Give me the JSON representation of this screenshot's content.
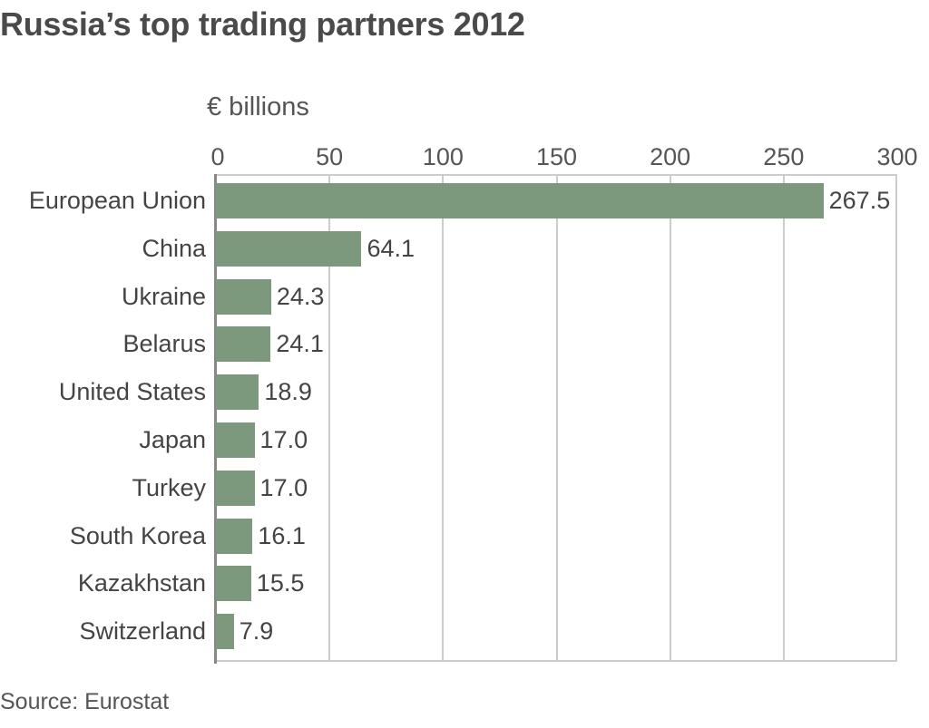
{
  "chart_data": {
    "type": "bar",
    "orientation": "horizontal",
    "title": "Russia’s top trading partners 2012",
    "unit_label": "€ billions",
    "xlabel": "€ billions",
    "ylabel": "",
    "xlim": [
      0,
      300
    ],
    "ticks": [
      0,
      50,
      100,
      150,
      200,
      250,
      300
    ],
    "tick_labels": [
      "0",
      "50",
      "100",
      "150",
      "200",
      "250",
      "300"
    ],
    "grid": true,
    "categories": [
      "European Union",
      "China",
      "Ukraine",
      "Belarus",
      "United States",
      "Japan",
      "Turkey",
      "South Korea",
      "Kazakhstan",
      "Switzerland"
    ],
    "values": [
      267.5,
      64.1,
      24.3,
      24.1,
      18.9,
      17.0,
      17.0,
      16.1,
      15.5,
      7.9
    ],
    "value_labels": [
      "267.5",
      "64.1",
      "24.3",
      "24.1",
      "18.9",
      "17.0",
      "17.0",
      "16.1",
      "15.5",
      "7.9"
    ],
    "bar_color": "#7d997d",
    "source": "Source: Eurostat"
  }
}
